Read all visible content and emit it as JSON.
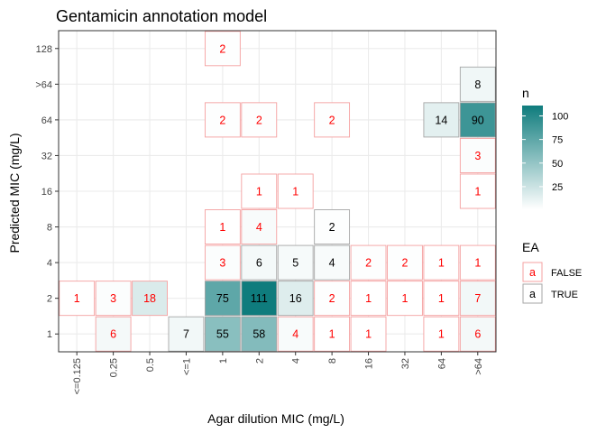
{
  "chart_data": {
    "type": "heatmap",
    "title": "Gentamicin annotation model",
    "xlabel": "Agar dilution MIC (mg/L)",
    "ylabel": "Predicted MIC (mg/L)",
    "x_categories": [
      "<=0.125",
      "0.25",
      "0.5",
      "<=1",
      "1",
      "2",
      "4",
      "8",
      "16",
      "32",
      "64",
      ">64"
    ],
    "y_categories": [
      "1",
      "2",
      "4",
      "8",
      "16",
      "32",
      "64",
      ">64",
      "128"
    ],
    "cells": [
      {
        "x": "<=1",
        "y": "1",
        "n": 7,
        "EA": true
      },
      {
        "x": "0.25",
        "y": "1",
        "n": 6,
        "EA": false
      },
      {
        "x": "1",
        "y": "1",
        "n": 55,
        "EA": true
      },
      {
        "x": "2",
        "y": "1",
        "n": 58,
        "EA": true
      },
      {
        "x": "4",
        "y": "1",
        "n": 4,
        "EA": false
      },
      {
        "x": "8",
        "y": "1",
        "n": 1,
        "EA": false
      },
      {
        "x": "16",
        "y": "1",
        "n": 1,
        "EA": false
      },
      {
        "x": "64",
        "y": "1",
        "n": 1,
        "EA": false
      },
      {
        "x": ">64",
        "y": "1",
        "n": 6,
        "EA": false
      },
      {
        "x": "<=0.125",
        "y": "2",
        "n": 1,
        "EA": false
      },
      {
        "x": "0.25",
        "y": "2",
        "n": 3,
        "EA": false
      },
      {
        "x": "0.5",
        "y": "2",
        "n": 18,
        "EA": false
      },
      {
        "x": "1",
        "y": "2",
        "n": 75,
        "EA": true
      },
      {
        "x": "2",
        "y": "2",
        "n": 111,
        "EA": true
      },
      {
        "x": "4",
        "y": "2",
        "n": 16,
        "EA": true
      },
      {
        "x": "8",
        "y": "2",
        "n": 2,
        "EA": false
      },
      {
        "x": "16",
        "y": "2",
        "n": 1,
        "EA": false
      },
      {
        "x": "32",
        "y": "2",
        "n": 1,
        "EA": false
      },
      {
        "x": "64",
        "y": "2",
        "n": 1,
        "EA": false
      },
      {
        "x": ">64",
        "y": "2",
        "n": 7,
        "EA": false
      },
      {
        "x": "1",
        "y": "4",
        "n": 3,
        "EA": false
      },
      {
        "x": "2",
        "y": "4",
        "n": 6,
        "EA": true
      },
      {
        "x": "4",
        "y": "4",
        "n": 5,
        "EA": true
      },
      {
        "x": "8",
        "y": "4",
        "n": 4,
        "EA": true
      },
      {
        "x": "16",
        "y": "4",
        "n": 2,
        "EA": false
      },
      {
        "x": "32",
        "y": "4",
        "n": 2,
        "EA": false
      },
      {
        "x": "64",
        "y": "4",
        "n": 1,
        "EA": false
      },
      {
        "x": ">64",
        "y": "4",
        "n": 1,
        "EA": false
      },
      {
        "x": "1",
        "y": "8",
        "n": 1,
        "EA": false
      },
      {
        "x": "2",
        "y": "8",
        "n": 4,
        "EA": false
      },
      {
        "x": "8",
        "y": "8",
        "n": 2,
        "EA": true
      },
      {
        "x": "2",
        "y": "16",
        "n": 1,
        "EA": false
      },
      {
        "x": "4",
        "y": "16",
        "n": 1,
        "EA": false
      },
      {
        "x": ">64",
        "y": "16",
        "n": 1,
        "EA": false
      },
      {
        "x": ">64",
        "y": "32",
        "n": 3,
        "EA": false
      },
      {
        "x": "1",
        "y": "64",
        "n": 2,
        "EA": false
      },
      {
        "x": "2",
        "y": "64",
        "n": 2,
        "EA": false
      },
      {
        "x": "8",
        "y": "64",
        "n": 2,
        "EA": false
      },
      {
        "x": "64",
        "y": "64",
        "n": 14,
        "EA": true
      },
      {
        "x": ">64",
        "y": "64",
        "n": 90,
        "EA": true
      },
      {
        "x": ">64",
        "y": ">64",
        "n": 8,
        "EA": true
      },
      {
        "x": "1",
        "y": "128",
        "n": 2,
        "EA": false
      }
    ],
    "fill_legend": {
      "title": "n",
      "breaks": [
        25,
        50,
        75,
        100
      ],
      "range": [
        1,
        111
      ],
      "low_color": "#ffffff",
      "high_color": "#0f7c7d"
    },
    "ea_legend": {
      "title": "EA",
      "items": [
        {
          "key": "a",
          "label": "FALSE",
          "text_color": "#ff0000",
          "border_color": "#f4a0a0"
        },
        {
          "key": "a",
          "label": "TRUE",
          "text_color": "#000000",
          "border_color": "#a6a6a6"
        }
      ]
    },
    "grid": true,
    "legend_position": "right"
  }
}
